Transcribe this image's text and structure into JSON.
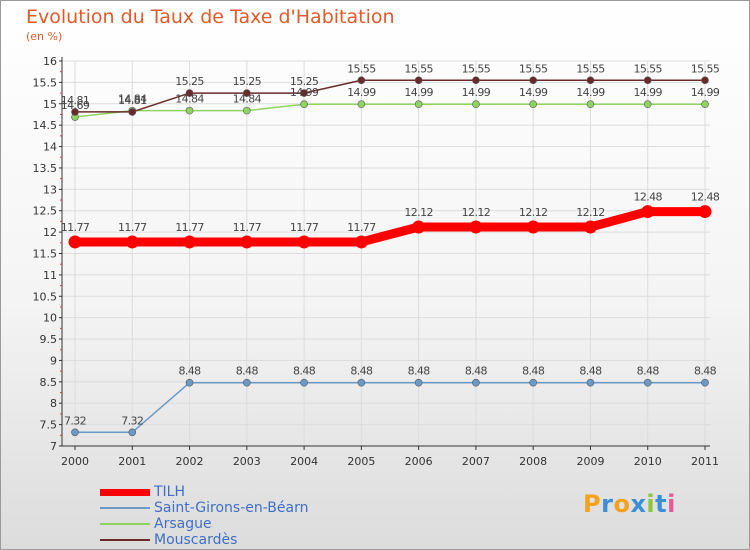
{
  "chart_data": {
    "type": "line",
    "title": "Evolution du Taux de Taxe d'Habitation",
    "subtitle": "(en %)",
    "xlabel": "",
    "ylabel": "",
    "ylim": [
      7,
      16
    ],
    "y_ticks": [
      "7",
      "7.5",
      "8",
      "8.5",
      "9",
      "9.5",
      "10",
      "10.5",
      "11",
      "11.5",
      "12",
      "12.5",
      "13",
      "13.5",
      "14",
      "14.5",
      "15",
      "15.5",
      "16"
    ],
    "categories": [
      "2000",
      "2001",
      "2002",
      "2003",
      "2004",
      "2005",
      "2006",
      "2007",
      "2008",
      "2009",
      "2010",
      "2011"
    ],
    "series": [
      {
        "name": "TILH",
        "color": "#ff0000",
        "values": [
          11.77,
          11.77,
          11.77,
          11.77,
          11.77,
          11.77,
          12.12,
          12.12,
          12.12,
          12.12,
          12.48,
          12.48
        ],
        "labels": [
          "11.77",
          "11.77",
          "11.77",
          "11.77",
          "11.77",
          "11.77",
          "12.12",
          "12.12",
          "12.12",
          "12.12",
          "12.48",
          "12.48"
        ]
      },
      {
        "name": "Saint-Girons-en-Béarn",
        "color": "#6b9ac8",
        "values": [
          7.32,
          7.32,
          8.48,
          8.48,
          8.48,
          8.48,
          8.48,
          8.48,
          8.48,
          8.48,
          8.48,
          8.48
        ],
        "labels": [
          "7.32",
          "7.32",
          "8.48",
          "8.48",
          "8.48",
          "8.48",
          "8.48",
          "8.48",
          "8.48",
          "8.48",
          "8.48",
          "8.48"
        ]
      },
      {
        "name": "Arsague",
        "color": "#8fd460",
        "values": [
          14.69,
          14.84,
          14.84,
          14.84,
          14.99,
          14.99,
          14.99,
          14.99,
          14.99,
          14.99,
          14.99,
          14.99
        ],
        "labels": [
          "14.69",
          "14.84",
          "14.84",
          "14.84",
          "14.99",
          "14.99",
          "14.99",
          "14.99",
          "14.99",
          "14.99",
          "14.99",
          "14.99"
        ]
      },
      {
        "name": "Mouscardès",
        "color": "#6b2a2a",
        "values": [
          14.81,
          14.81,
          15.25,
          15.25,
          15.25,
          15.55,
          15.55,
          15.55,
          15.55,
          15.55,
          15.55,
          15.55
        ],
        "labels": [
          "14.81",
          "14.81",
          "15.25",
          "15.25",
          "15.25",
          "15.55",
          "15.55",
          "15.55",
          "15.55",
          "15.55",
          "15.55",
          "15.55"
        ]
      }
    ]
  },
  "legend": {
    "items": [
      {
        "label": "TILH"
      },
      {
        "label": "Saint-Girons-en-Béarn"
      },
      {
        "label": "Arsague"
      },
      {
        "label": "Mouscardès"
      }
    ]
  },
  "logo": {
    "letters": [
      "P",
      "r",
      "o",
      "x",
      "i",
      "t",
      "i"
    ],
    "colors": [
      "#f2a21b",
      "#3a8fd6",
      "#f2a21b",
      "#3a8fd6",
      "#8bc43f",
      "#3a8fd6",
      "#e25a9a"
    ]
  }
}
